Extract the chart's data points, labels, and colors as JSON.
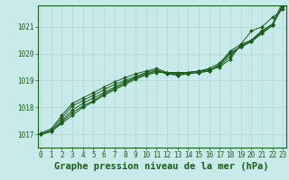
{
  "xlabel": "Graphe pression niveau de la mer (hPa)",
  "background_color": "#c8eaea",
  "grid_color": "#b0d4d4",
  "line_color": "#1a5c1a",
  "marker_color": "#1a5c1a",
  "hours": [
    0,
    1,
    2,
    3,
    4,
    5,
    6,
    7,
    8,
    9,
    10,
    11,
    12,
    13,
    14,
    15,
    16,
    17,
    18,
    19,
    20,
    21,
    22,
    23
  ],
  "series": [
    [
      1017.0,
      1017.1,
      1017.4,
      1017.7,
      1018.0,
      1018.2,
      1018.45,
      1018.65,
      1018.85,
      1019.05,
      1019.2,
      1019.3,
      1019.3,
      1019.3,
      1019.3,
      1019.35,
      1019.4,
      1019.5,
      1019.8,
      1020.35,
      1020.85,
      1021.0,
      1021.35,
      1021.65
    ],
    [
      1017.0,
      1017.1,
      1017.45,
      1017.8,
      1018.05,
      1018.25,
      1018.5,
      1018.7,
      1018.9,
      1019.1,
      1019.25,
      1019.35,
      1019.3,
      1019.25,
      1019.3,
      1019.35,
      1019.4,
      1019.55,
      1019.9,
      1020.3,
      1020.5,
      1020.85,
      1021.1,
      1021.75
    ],
    [
      1017.0,
      1017.1,
      1017.5,
      1017.9,
      1018.15,
      1018.35,
      1018.55,
      1018.75,
      1018.95,
      1019.1,
      1019.25,
      1019.35,
      1019.25,
      1019.2,
      1019.25,
      1019.3,
      1019.35,
      1019.6,
      1020.0,
      1020.25,
      1020.45,
      1020.75,
      1021.05,
      1021.8
    ],
    [
      1017.0,
      1017.15,
      1017.6,
      1018.05,
      1018.25,
      1018.45,
      1018.65,
      1018.85,
      1019.0,
      1019.15,
      1019.3,
      1019.4,
      1019.25,
      1019.2,
      1019.25,
      1019.3,
      1019.35,
      1019.6,
      1020.05,
      1020.25,
      1020.45,
      1020.8,
      1021.05,
      1021.85
    ],
    [
      1017.05,
      1017.2,
      1017.7,
      1018.15,
      1018.35,
      1018.55,
      1018.75,
      1018.95,
      1019.1,
      1019.25,
      1019.35,
      1019.45,
      1019.3,
      1019.25,
      1019.3,
      1019.35,
      1019.45,
      1019.65,
      1020.1,
      1020.35,
      1020.5,
      1020.85,
      1021.1,
      1021.95
    ]
  ],
  "ylim": [
    1016.5,
    1021.8
  ],
  "yticks": [
    1017,
    1018,
    1019,
    1020,
    1021
  ],
  "xticks": [
    0,
    1,
    2,
    3,
    4,
    5,
    6,
    7,
    8,
    9,
    10,
    11,
    12,
    13,
    14,
    15,
    16,
    17,
    18,
    19,
    20,
    21,
    22,
    23
  ],
  "tick_fontsize": 5.5,
  "xlabel_fontsize": 7.5
}
